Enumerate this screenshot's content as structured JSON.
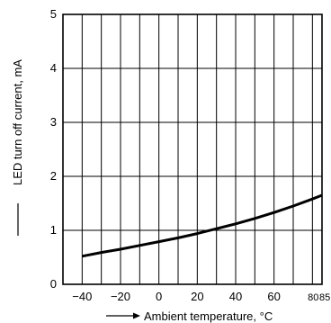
{
  "chart_data": {
    "type": "line",
    "title": "",
    "xlabel": "Ambient temperature, °C",
    "ylabel": "LED turn off current, mA",
    "xlim": [
      -50,
      85
    ],
    "ylim": [
      0,
      5
    ],
    "x_ticks": [
      {
        "value": -40,
        "label": "−40"
      },
      {
        "value": -20,
        "label": "−20"
      },
      {
        "value": 0,
        "label": "0"
      },
      {
        "value": 20,
        "label": "20"
      },
      {
        "value": 40,
        "label": "40"
      },
      {
        "value": 60,
        "label": "60"
      },
      {
        "value": 80,
        "label": "80"
      },
      {
        "value": 85,
        "label": "85"
      }
    ],
    "y_ticks": [
      {
        "value": 0,
        "label": "0"
      },
      {
        "value": 1,
        "label": "1"
      },
      {
        "value": 2,
        "label": "2"
      },
      {
        "value": 3,
        "label": "3"
      },
      {
        "value": 4,
        "label": "4"
      },
      {
        "value": 5,
        "label": "5"
      }
    ],
    "grid": true,
    "legend": "none",
    "series": [
      {
        "x": [
          -40,
          -30,
          -20,
          -10,
          0,
          10,
          20,
          30,
          40,
          50,
          60,
          70,
          80,
          85
        ],
        "y": [
          0.52,
          0.59,
          0.65,
          0.72,
          0.79,
          0.86,
          0.94,
          1.03,
          1.12,
          1.22,
          1.33,
          1.45,
          1.58,
          1.65
        ],
        "color": "#000000"
      }
    ]
  }
}
